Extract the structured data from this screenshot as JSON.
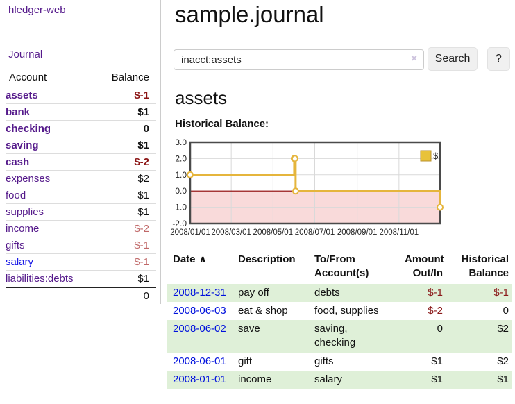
{
  "app": {
    "brand": "hledger-web"
  },
  "nav": {
    "journal_label": "Journal"
  },
  "sidebar": {
    "header": {
      "account": "Account",
      "balance": "Balance"
    },
    "accounts": [
      {
        "name": "assets",
        "balance": "$-1",
        "indent": 1,
        "bold": true,
        "neg": "strong",
        "link": "purple"
      },
      {
        "name": "bank",
        "balance": "$1",
        "indent": 2,
        "bold": true,
        "neg": "none",
        "link": "purple"
      },
      {
        "name": "checking",
        "balance": "0",
        "indent": 3,
        "bold": true,
        "neg": "none",
        "link": "purple"
      },
      {
        "name": "saving",
        "balance": "$1",
        "indent": 3,
        "bold": true,
        "neg": "none",
        "link": "purple"
      },
      {
        "name": "cash",
        "balance": "$-2",
        "indent": 2,
        "bold": true,
        "neg": "strong",
        "link": "purple"
      },
      {
        "name": "expenses",
        "balance": "$2",
        "indent": 1,
        "bold": false,
        "neg": "none",
        "link": "purple"
      },
      {
        "name": "food",
        "balance": "$1",
        "indent": 2,
        "bold": false,
        "neg": "none",
        "link": "purple"
      },
      {
        "name": "supplies",
        "balance": "$1",
        "indent": 2,
        "bold": false,
        "neg": "none",
        "link": "purple"
      },
      {
        "name": "income",
        "balance": "$-2",
        "indent": 1,
        "bold": false,
        "neg": "soft",
        "link": "purple"
      },
      {
        "name": "gifts",
        "balance": "$-1",
        "indent": 2,
        "bold": false,
        "neg": "soft",
        "link": "purple"
      },
      {
        "name": "salary",
        "balance": "$-1",
        "indent": 2,
        "bold": false,
        "neg": "soft",
        "link": "blue"
      },
      {
        "name": "liabilities:debts",
        "balance": "$1",
        "indent": 1,
        "bold": false,
        "neg": "none",
        "link": "purple"
      }
    ],
    "total": "0"
  },
  "header": {
    "title": "sample.journal"
  },
  "search": {
    "value": "inacct:assets",
    "clear_icon": "×",
    "button_label": "Search",
    "help_label": "?"
  },
  "account_page": {
    "heading": "assets",
    "chart_title": "Historical Balance:"
  },
  "chart_data": {
    "type": "line",
    "step": true,
    "title": "Historical Balance:",
    "series": [
      {
        "name": "$",
        "points": [
          [
            "2008-01-01",
            1
          ],
          [
            "2008-06-01",
            2
          ],
          [
            "2008-06-02",
            2
          ],
          [
            "2008-06-03",
            0
          ],
          [
            "2008-12-31",
            -1
          ]
        ]
      }
    ],
    "x_range": [
      "2008-01-01",
      "2008-12-31"
    ],
    "x_tick_labels": [
      "2008/01/01",
      "2008/03/01",
      "2008/05/01",
      "2008/07/01",
      "2008/09/01",
      "2008/11/01"
    ],
    "y_ticks": [
      3.0,
      2.0,
      1.0,
      0.0,
      -1.0,
      -2.0
    ],
    "ylim": [
      -2,
      3
    ],
    "grid": true,
    "legend": {
      "label": "$",
      "position": "top-right"
    },
    "colors": {
      "line": "#e5b53c",
      "marker_fill": "#ffffff",
      "negative_region": "#f9dada",
      "zero_line": "#8b0000",
      "grid": "#d9d9d9",
      "frame": "#4a4a4a",
      "tick_text": "#222222",
      "legend_box_fill": "#e8c23a",
      "legend_box_stroke": "#b8902c"
    }
  },
  "register": {
    "headers": {
      "date": "Date",
      "sort_arrow": "∧",
      "description": "Description",
      "accounts": "To/From\nAccount(s)",
      "amount": "Amount\nOut/In",
      "balance": "Historical\nBalance"
    },
    "rows": [
      {
        "date": "2008-12-31",
        "description": "pay off",
        "accounts": "debts",
        "amount": "$-1",
        "amount_neg": true,
        "balance": "$-1",
        "balance_neg": true,
        "shade": true
      },
      {
        "date": "2008-06-03",
        "description": "eat & shop",
        "accounts": "food, supplies",
        "amount": "$-2",
        "amount_neg": true,
        "balance": "0",
        "balance_neg": false,
        "shade": false
      },
      {
        "date": "2008-06-02",
        "description": "save",
        "accounts": "saving,\nchecking",
        "amount": "0",
        "amount_neg": false,
        "balance": "$2",
        "balance_neg": false,
        "shade": true
      },
      {
        "date": "2008-06-01",
        "description": "gift",
        "accounts": "gifts",
        "amount": "$1",
        "amount_neg": false,
        "balance": "$2",
        "balance_neg": false,
        "shade": false
      },
      {
        "date": "2008-01-01",
        "description": "income",
        "accounts": "salary",
        "amount": "$1",
        "amount_neg": false,
        "balance": "$1",
        "balance_neg": false,
        "shade": true
      }
    ]
  },
  "colors": {
    "link_purple": "#551a8b",
    "link_blue": "#1a1ae6",
    "date_link_blue": "#0011dd",
    "negative_strong": "#8b1414",
    "negative_soft": "#c06868",
    "negative_table": "#8b1b1b",
    "row_shade_green": "#dff0d8"
  }
}
